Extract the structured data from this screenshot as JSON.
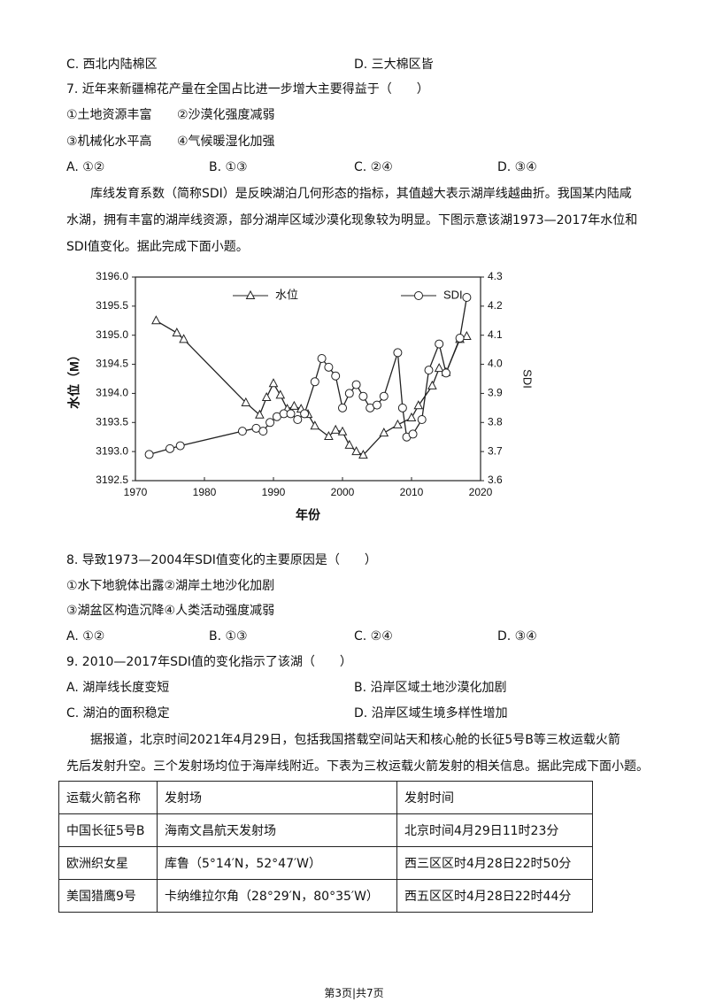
{
  "q6": {
    "options": [
      "C. 西北内陆棉区",
      "D. 三大棉区皆"
    ]
  },
  "q7": {
    "stem": "7. 近年来新疆棉花产量在全国占比进一步增大主要得益于（　　）",
    "statements": [
      "①土地资源丰富",
      "②沙漠化强度减弱",
      "③机械化水平高",
      "④气候暖湿化加强"
    ],
    "options": [
      "A. ①②",
      "B. ①③",
      "C. ②④",
      "D. ③④"
    ]
  },
  "passage1": [
    "库线发育系数（简称SDI）是反映湖泊几何形态的指标，其值越大表示湖岸线越曲折。我国某内陆咸",
    "水湖，拥有丰富的湖岸线资源，部分湖岸区域沙漠化现象较为明显。下图示意该湖1973—2017年水位和",
    "SDI值变化。据此完成下面小题。"
  ],
  "chart_data": {
    "type": "line",
    "xlabel": "年份",
    "ylabel": "水位（M）",
    "y2label": "SDI",
    "xlim": [
      1970,
      2020
    ],
    "xticks": [
      1970,
      1980,
      1990,
      2000,
      2010,
      2020
    ],
    "ylim": [
      3192.5,
      3196.0
    ],
    "yticks": [
      3192.5,
      {
        "value": 3193,
        "label": "3193.0"
      },
      3193.5,
      {
        "value": 3194,
        "label": "3194.0"
      },
      3194.5,
      {
        "value": 3195,
        "label": "3195.0"
      },
      3195.5,
      {
        "value": 3196,
        "label": "3196.0"
      }
    ],
    "y2lim": [
      3.6,
      4.3
    ],
    "y2ticks": [
      3.6,
      3.7,
      3.8,
      3.9,
      {
        "value": 4,
        "label": "4.0"
      },
      4.1,
      4.2,
      4.3
    ],
    "legend": "top",
    "series": [
      {
        "name": "水位",
        "color": "#222222",
        "marker": "triangle",
        "x": [
          1973,
          1976,
          1977,
          1986,
          1988,
          1989,
          1990,
          1991,
          1992,
          1993,
          1994,
          1995,
          1996,
          1998,
          1999,
          2000,
          2001,
          2002,
          2003,
          2006,
          2008,
          2010,
          2011,
          2013,
          2014,
          2015,
          2017,
          2018
        ],
        "values": [
          3195.25,
          3195.04,
          3194.93,
          3193.84,
          3193.63,
          3193.93,
          3194.17,
          3193.97,
          3193.73,
          3193.78,
          3193.73,
          3193.64,
          3193.44,
          3193.26,
          3193.37,
          3193.34,
          3193.11,
          3193.0,
          3192.94,
          3193.32,
          3193.46,
          3193.58,
          3193.79,
          3194.13,
          3194.43,
          3194.36,
          3194.93,
          3194.98
        ]
      },
      {
        "name": "SDI",
        "color": "#222222",
        "marker": "circle",
        "axis": "y2",
        "x": [
          1972,
          1975,
          1976.5,
          1985.5,
          1987.5,
          1988.5,
          1989.5,
          1990.5,
          1991.5,
          1992.5,
          1993.5,
          1994.5,
          1996,
          1997,
          1998,
          1999,
          2000,
          2001,
          2002,
          2003,
          2004,
          2005,
          2006,
          2008,
          2008.7,
          2009.3,
          2010.2,
          2011.5,
          2012.5,
          2014,
          2015,
          2017,
          2018
        ],
        "values": [
          3.69,
          3.71,
          3.72,
          3.77,
          3.78,
          3.77,
          3.8,
          3.82,
          3.83,
          3.83,
          3.81,
          3.83,
          3.94,
          4.02,
          3.99,
          3.96,
          3.85,
          3.9,
          3.93,
          3.89,
          3.85,
          3.86,
          3.89,
          4.04,
          3.85,
          3.75,
          3.76,
          3.81,
          3.98,
          4.07,
          3.97,
          4.09,
          4.23
        ]
      }
    ]
  },
  "q8": {
    "stem": "8. 导致1973—2004年SDI值变化的主要原因是（　　）",
    "statements": [
      "①水下地貌体出露②湖岸土地沙化加剧",
      "③湖盆区构造沉降④人类活动强度减弱"
    ],
    "options": [
      "A. ①②",
      "B. ①③",
      "C. ②④",
      "D. ③④"
    ]
  },
  "q9": {
    "stem": "9. 2010—2017年SDI值的变化指示了该湖（　　）",
    "options": [
      "A. 湖岸线长度变短",
      "B. 沿岸区域土地沙漠化加剧",
      "C. 湖泊的面积稳定",
      "D. 沿岸区域生境多样性增加"
    ]
  },
  "passage2": [
    "据报道，北京时间2021年4月29日，包括我国搭载空间站天和核心舱的长征5号B等三枚运载火箭",
    "先后发射升空。三个发射场均位于海岸线附近。下表为三枚运载火箭发射的相关信息。据此完成下面小题。"
  ],
  "table": {
    "header": [
      "运载火箭名称",
      "发射场",
      "发射时间"
    ],
    "rows": [
      [
        "中国长征5号B",
        "海南文昌航天发射场",
        "北京时间4月29日11时23分"
      ],
      [
        "欧洲织女星",
        "库鲁（5°14′N，52°47′W）",
        "西三区区时4月28日22时50分"
      ],
      [
        "美国猎鹰9号",
        "卡纳维拉尔角（28°29′N，80°35′W）",
        "西五区区时4月28日22时44分"
      ]
    ]
  },
  "footer": "第3页|共7页"
}
